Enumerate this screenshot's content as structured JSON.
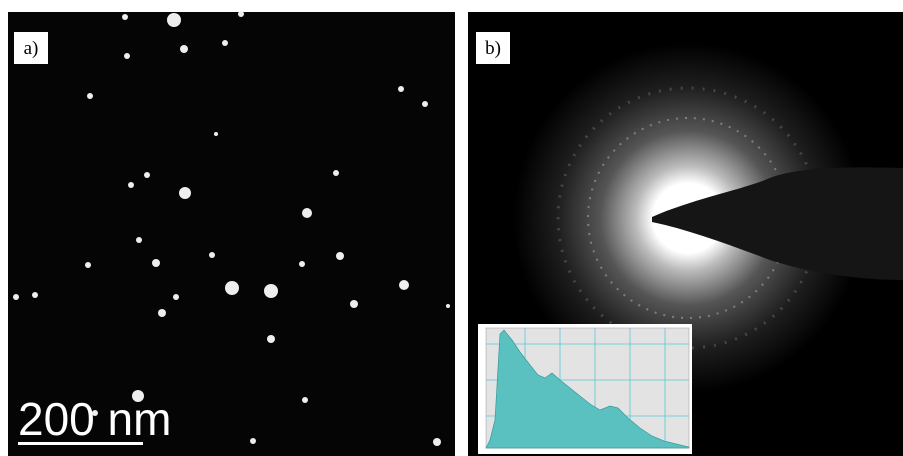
{
  "panels": [
    {
      "label": "a)",
      "scale_bar": "200 nm"
    },
    {
      "label": "b)"
    }
  ]
}
